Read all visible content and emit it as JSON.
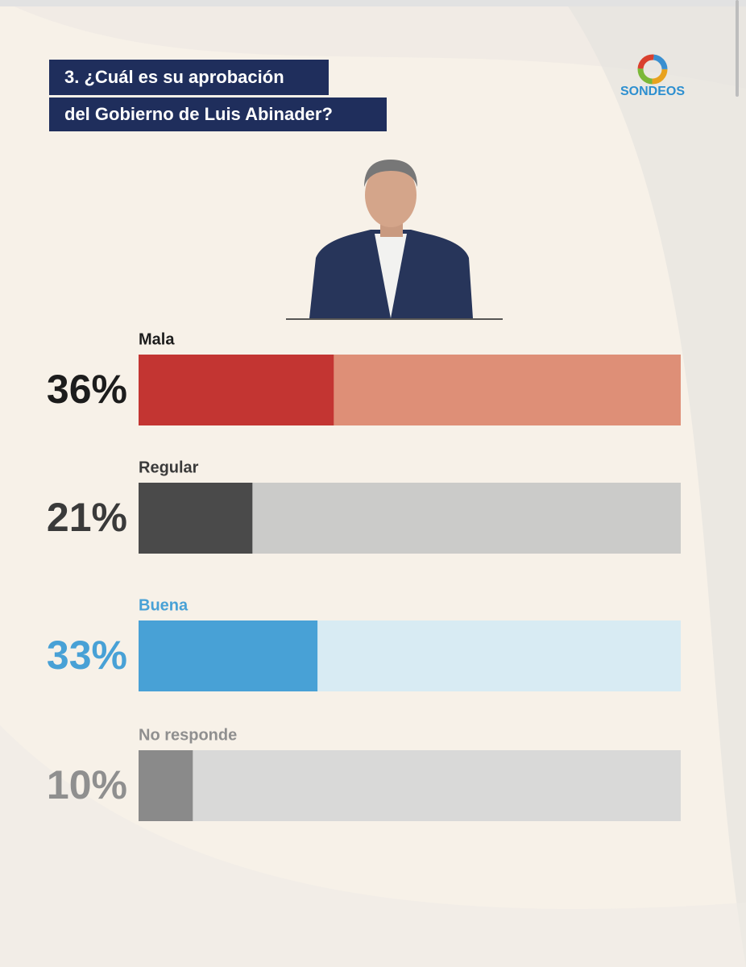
{
  "logo": "SONDEOS",
  "chart_data": {
    "type": "hbar",
    "title_lines": [
      "3. ¿Cuál es su aprobación",
      "del Gobierno de Luis Abinader?"
    ],
    "categories": [
      "Mala",
      "Regular",
      "Buena",
      "No responde"
    ],
    "values": [
      36,
      21,
      33,
      10
    ],
    "value_labels": [
      "36%",
      "21%",
      "33%",
      "10%"
    ],
    "colors": [
      "#c33532",
      "#4a4a4a",
      "#48a1d6",
      "#8a8a8a"
    ],
    "track_colors": [
      "#de8f77",
      "#cbcbc9",
      "#d8ebf3",
      "#d9d9d8"
    ],
    "label_colors": [
      "#1c1c1c",
      "#3a3a3a",
      "#48a1d6",
      "#8f8f8f"
    ],
    "xlim": [
      0,
      100
    ]
  }
}
